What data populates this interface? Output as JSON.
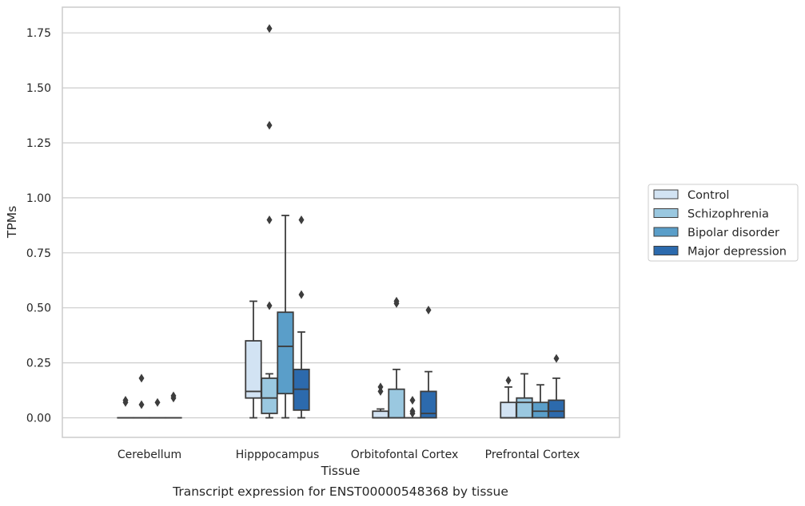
{
  "chart_data": {
    "type": "box",
    "title": "",
    "caption": "Transcript expression for ENST00000548368 by tissue",
    "xlabel": "Tissue",
    "ylabel": "TPMs",
    "ylim": [
      -0.09,
      1.85
    ],
    "yticks": [
      "0.00",
      "0.25",
      "0.50",
      "0.75",
      "1.00",
      "1.25",
      "1.50",
      "1.75"
    ],
    "ytick_values": [
      0,
      0.25,
      0.5,
      0.75,
      1.0,
      1.25,
      1.5,
      1.75
    ],
    "grid": "horizontal",
    "legend_position": "right",
    "categories": [
      "Cerebellum",
      "Hipppocampus",
      "Orbitofontal Cortex",
      "Prefrontal Cortex"
    ],
    "series": [
      {
        "name": "Control",
        "color": "#d2e3f3",
        "boxes": [
          {
            "q1": 0,
            "median": 0,
            "q3": 0,
            "whisker_low": 0,
            "whisker_high": 0,
            "outliers": [
              0.07,
              0.08
            ]
          },
          {
            "q1": 0.09,
            "median": 0.12,
            "q3": 0.35,
            "whisker_low": 0,
            "whisker_high": 0.53,
            "outliers": []
          },
          {
            "q1": 0,
            "median": 0,
            "q3": 0.03,
            "whisker_low": 0,
            "whisker_high": 0.04,
            "outliers": [
              0.12,
              0.14
            ]
          },
          {
            "q1": 0,
            "median": 0,
            "q3": 0.07,
            "whisker_low": 0,
            "whisker_high": 0.14,
            "outliers": [
              0.17
            ]
          }
        ]
      },
      {
        "name": "Schizophrenia",
        "color": "#9ac8e0",
        "boxes": [
          {
            "q1": 0,
            "median": 0,
            "q3": 0,
            "whisker_low": 0,
            "whisker_high": 0,
            "outliers": [
              0.18,
              0.06
            ]
          },
          {
            "q1": 0.02,
            "median": 0.09,
            "q3": 0.18,
            "whisker_low": 0,
            "whisker_high": 0.2,
            "outliers": [
              0.51,
              0.9,
              1.33,
              1.77
            ]
          },
          {
            "q1": 0,
            "median": 0,
            "q3": 0.13,
            "whisker_low": 0,
            "whisker_high": 0.22,
            "outliers": [
              0.52,
              0.53
            ]
          },
          {
            "q1": 0,
            "median": 0.07,
            "q3": 0.09,
            "whisker_low": 0,
            "whisker_high": 0.2,
            "outliers": []
          }
        ]
      },
      {
        "name": "Bipolar disorder",
        "color": "#5a9ec9",
        "boxes": [
          {
            "q1": 0,
            "median": 0,
            "q3": 0,
            "whisker_low": 0,
            "whisker_high": 0,
            "outliers": [
              0.07
            ]
          },
          {
            "q1": 0.11,
            "median": 0.325,
            "q3": 0.48,
            "whisker_low": 0,
            "whisker_high": 0.92,
            "outliers": []
          },
          {
            "q1": 0,
            "median": 0,
            "q3": 0,
            "whisker_low": 0,
            "whisker_high": 0,
            "outliers": [
              0.02,
              0.03,
              0.08
            ]
          },
          {
            "q1": 0,
            "median": 0.03,
            "q3": 0.07,
            "whisker_low": 0,
            "whisker_high": 0.15,
            "outliers": []
          }
        ]
      },
      {
        "name": "Major depression",
        "color": "#2c6aad",
        "boxes": [
          {
            "q1": 0,
            "median": 0,
            "q3": 0,
            "whisker_low": 0,
            "whisker_high": 0,
            "outliers": [
              0.09,
              0.1
            ]
          },
          {
            "q1": 0.035,
            "median": 0.13,
            "q3": 0.22,
            "whisker_low": 0,
            "whisker_high": 0.39,
            "outliers": [
              0.56,
              0.9
            ]
          },
          {
            "q1": 0,
            "median": 0.02,
            "q3": 0.12,
            "whisker_low": 0,
            "whisker_high": 0.21,
            "outliers": [
              0.49
            ]
          },
          {
            "q1": 0,
            "median": 0.03,
            "q3": 0.08,
            "whisker_low": 0,
            "whisker_high": 0.18,
            "outliers": [
              0.27
            ]
          }
        ]
      }
    ]
  }
}
